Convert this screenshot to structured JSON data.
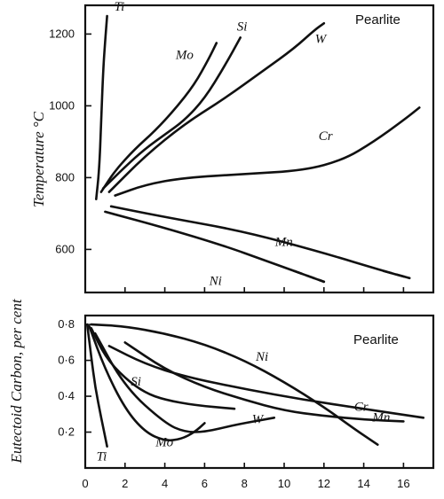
{
  "chart_data": [
    {
      "type": "line",
      "region_label": "Pearlite",
      "ylabel": "Temperature °C",
      "xlim": [
        0,
        17.5
      ],
      "ylim": [
        480,
        1280
      ],
      "yticks": [
        600,
        800,
        1000,
        1200
      ],
      "series": [
        {
          "name": "Ti",
          "x": [
            0.55,
            0.7,
            0.8,
            0.9,
            1.0,
            1.1
          ],
          "y": [
            740,
            820,
            950,
            1100,
            1180,
            1250
          ]
        },
        {
          "name": "Mo",
          "x": [
            0.8,
            1.5,
            2.5,
            3.5,
            4.5,
            5.5,
            6.2,
            6.6
          ],
          "y": [
            760,
            820,
            880,
            930,
            990,
            1060,
            1130,
            1175
          ]
        },
        {
          "name": "Si",
          "x": [
            0.9,
            2,
            3,
            4,
            5,
            6,
            7,
            7.8
          ],
          "y": [
            770,
            830,
            880,
            920,
            960,
            1020,
            1110,
            1190
          ]
        },
        {
          "name": "W",
          "x": [
            1.2,
            3,
            5,
            7,
            9,
            10.5,
            11.5,
            12
          ],
          "y": [
            760,
            860,
            950,
            1020,
            1100,
            1160,
            1210,
            1230
          ]
        },
        {
          "name": "Cr",
          "x": [
            1.5,
            3,
            5,
            8,
            11,
            13,
            14.5,
            16,
            16.8
          ],
          "y": [
            750,
            780,
            800,
            810,
            820,
            850,
            900,
            960,
            995
          ]
        },
        {
          "name": "Mn",
          "x": [
            1.3,
            4,
            8,
            12,
            15,
            16.3
          ],
          "y": [
            720,
            690,
            650,
            590,
            540,
            520
          ]
        },
        {
          "name": "Ni",
          "x": [
            1,
            4,
            7,
            9,
            10.5,
            12
          ],
          "y": [
            705,
            660,
            610,
            570,
            540,
            510
          ]
        }
      ]
    },
    {
      "type": "line",
      "region_label": "Pearlite",
      "ylabel": "Eutectoid Carbon, per cent",
      "xlim": [
        0,
        17.5
      ],
      "ylim": [
        0,
        0.85
      ],
      "yticks": [
        "0·2",
        "0·4",
        "0·6",
        "0·8"
      ],
      "ytick_values": [
        0.2,
        0.4,
        0.6,
        0.8
      ],
      "xticks": [
        "0",
        "2",
        "4",
        "6",
        "8",
        "10",
        "12",
        "14",
        "16"
      ],
      "xtick_values": [
        0,
        2,
        4,
        6,
        8,
        10,
        12,
        14,
        16
      ],
      "series": [
        {
          "name": "Ti",
          "x": [
            0.1,
            0.3,
            0.5,
            0.8,
            1.1
          ],
          "y": [
            0.8,
            0.62,
            0.45,
            0.28,
            0.12
          ]
        },
        {
          "name": "Mo",
          "x": [
            0.2,
            1,
            2,
            3,
            4,
            4.8,
            5.5,
            6
          ],
          "y": [
            0.79,
            0.55,
            0.33,
            0.2,
            0.15,
            0.16,
            0.2,
            0.25
          ]
        },
        {
          "name": "Si",
          "x": [
            0.3,
            1,
            2,
            3,
            4,
            5.5,
            7.5
          ],
          "y": [
            0.78,
            0.62,
            0.5,
            0.42,
            0.38,
            0.35,
            0.33
          ]
        },
        {
          "name": "W",
          "x": [
            0.5,
            2,
            4,
            5,
            6,
            7.5,
            9.5
          ],
          "y": [
            0.75,
            0.45,
            0.25,
            0.2,
            0.2,
            0.24,
            0.28
          ]
        },
        {
          "name": "Cr",
          "x": [
            1.2,
            3,
            5,
            8,
            11,
            14,
            17
          ],
          "y": [
            0.68,
            0.58,
            0.51,
            0.44,
            0.38,
            0.33,
            0.28
          ]
        },
        {
          "name": "Ni",
          "x": [
            0.3,
            2,
            4,
            6,
            8,
            10,
            12,
            13.5,
            14.7
          ],
          "y": [
            0.8,
            0.79,
            0.75,
            0.69,
            0.6,
            0.48,
            0.34,
            0.22,
            0.13
          ]
        },
        {
          "name": "Mn",
          "x": [
            2,
            4,
            6,
            8,
            10,
            12,
            14,
            16
          ],
          "y": [
            0.7,
            0.55,
            0.45,
            0.38,
            0.32,
            0.29,
            0.27,
            0.26
          ]
        }
      ]
    }
  ]
}
